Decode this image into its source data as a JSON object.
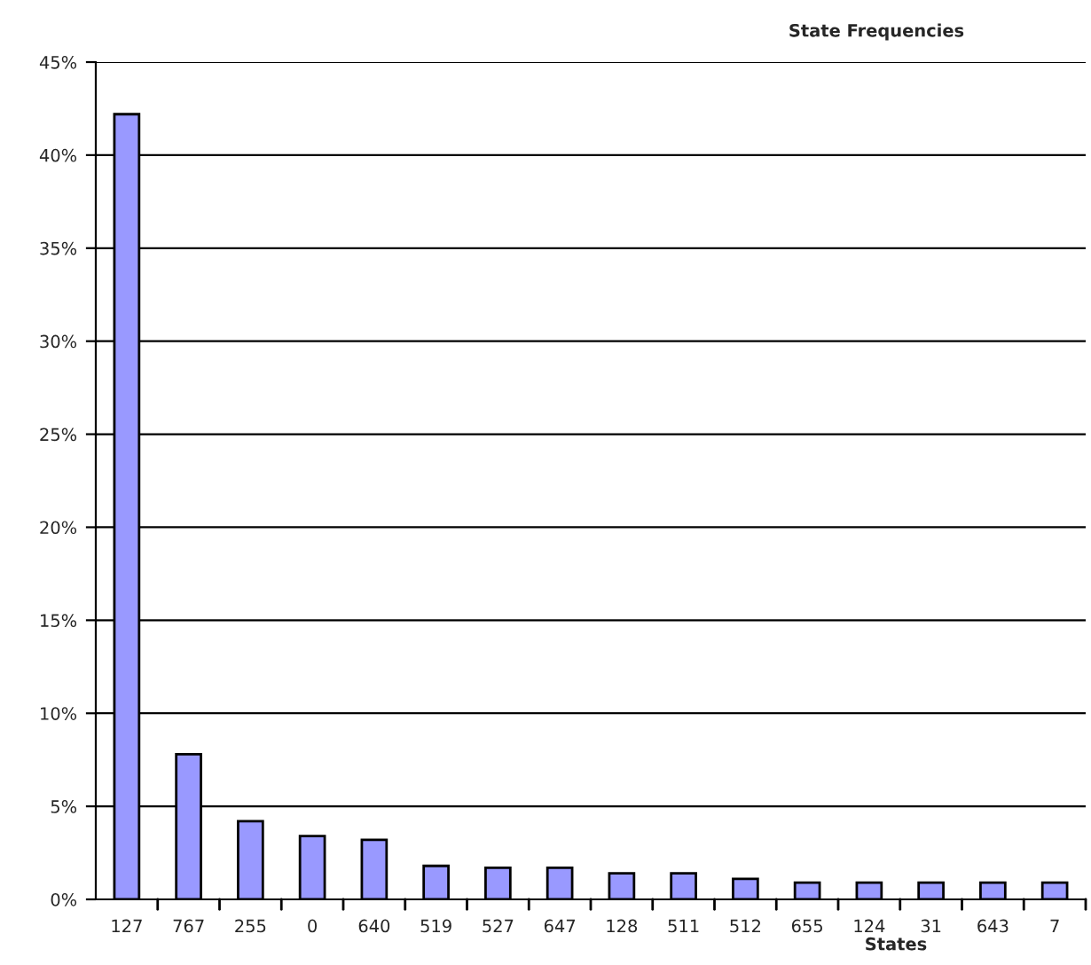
{
  "chart_data": {
    "type": "bar",
    "title": "State Frequencies",
    "xlabel": "States",
    "categories": [
      "127",
      "767",
      "255",
      "0",
      "640",
      "519",
      "527",
      "647",
      "128",
      "511",
      "512",
      "655",
      "124",
      "31",
      "643",
      "7"
    ],
    "values": [
      42.2,
      7.8,
      4.2,
      3.4,
      3.2,
      1.8,
      1.7,
      1.7,
      1.4,
      1.4,
      1.1,
      0.9,
      0.9,
      0.9,
      0.9,
      0.9
    ],
    "color": "#9999ff",
    "ylim": [
      0,
      45
    ],
    "yticks": [
      {
        "value": 0,
        "label": "0%"
      },
      {
        "value": 5,
        "label": "5%"
      },
      {
        "value": 10,
        "label": "10%"
      },
      {
        "value": 15,
        "label": "15%"
      },
      {
        "value": 20,
        "label": "20%"
      },
      {
        "value": 25,
        "label": "25%"
      },
      {
        "value": 30,
        "label": "30%"
      },
      {
        "value": 35,
        "label": "35%"
      },
      {
        "value": 40,
        "label": "40%"
      },
      {
        "value": 45,
        "label": "45%"
      }
    ],
    "grid": "y",
    "legend": false
  }
}
